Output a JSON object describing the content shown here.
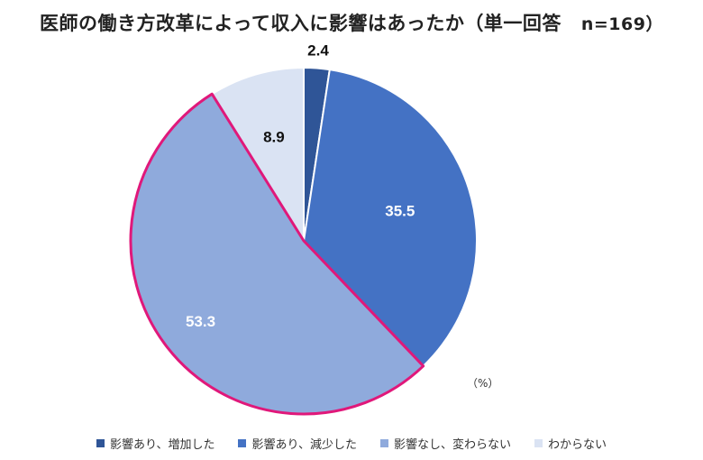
{
  "title": "医師の働き方改革によって収入に影響はあったか（単一回答",
  "sample": "n=169）",
  "unit_label": "（%）",
  "chart_data": {
    "type": "pie",
    "title": "医師の働き方改革によって収入に影響はあったか（単一回答　n=169）",
    "categories": [
      "影響あり、増加した",
      "影響あり、減少した",
      "影響なし、変わらない",
      "わからない"
    ],
    "values": [
      2.4,
      35.5,
      53.3,
      8.9
    ],
    "colors": [
      "#2f5597",
      "#4472c4",
      "#8faadc",
      "#dae3f3"
    ],
    "label_colors": [
      "#111111",
      "#ffffff",
      "#ffffff",
      "#111111"
    ],
    "highlight_index": 2,
    "highlight_color": "#e0187a",
    "legend_position": "bottom",
    "start_angle": "12 o'clock, clockwise",
    "unit": "%"
  }
}
